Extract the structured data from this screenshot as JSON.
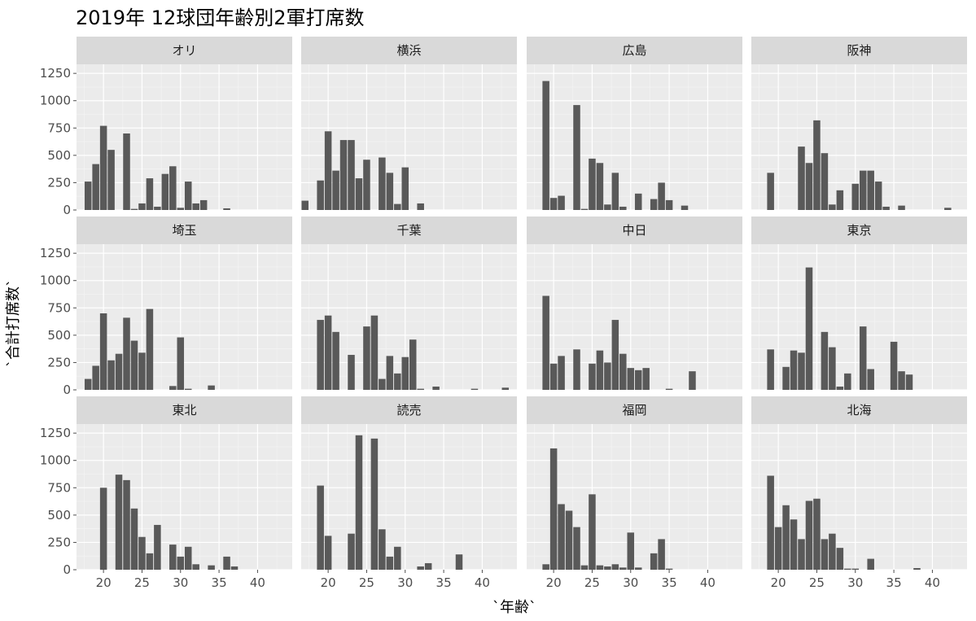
{
  "chart_data": {
    "type": "bar",
    "title": "2019年 12球団年齢別2軍打席数",
    "xlabel": "`年齢`",
    "ylabel": "`合計打席数`",
    "xlim": [
      16.5,
      44.5
    ],
    "ylim": [
      0,
      1250
    ],
    "x_ticks": [
      20,
      25,
      30,
      35,
      40
    ],
    "y_ticks": [
      0,
      250,
      500,
      750,
      1000,
      1250
    ],
    "grid": true,
    "panels": [
      {
        "name": "オリ",
        "bars": [
          [
            18,
            260
          ],
          [
            19,
            420
          ],
          [
            20,
            770
          ],
          [
            21,
            550
          ],
          [
            23,
            700
          ],
          [
            24,
            10
          ],
          [
            25,
            60
          ],
          [
            26,
            290
          ],
          [
            27,
            30
          ],
          [
            28,
            330
          ],
          [
            29,
            400
          ],
          [
            30,
            20
          ],
          [
            31,
            260
          ],
          [
            32,
            60
          ],
          [
            33,
            90
          ],
          [
            36,
            15
          ]
        ]
      },
      {
        "name": "横浜",
        "bars": [
          [
            17,
            85
          ],
          [
            19,
            270
          ],
          [
            20,
            720
          ],
          [
            21,
            360
          ],
          [
            22,
            640
          ],
          [
            23,
            640
          ],
          [
            24,
            290
          ],
          [
            25,
            460
          ],
          [
            27,
            480
          ],
          [
            28,
            340
          ],
          [
            29,
            55
          ],
          [
            30,
            390
          ],
          [
            32,
            60
          ]
        ]
      },
      {
        "name": "広島",
        "bars": [
          [
            19,
            1180
          ],
          [
            20,
            110
          ],
          [
            21,
            130
          ],
          [
            23,
            960
          ],
          [
            24,
            10
          ],
          [
            25,
            470
          ],
          [
            26,
            430
          ],
          [
            27,
            50
          ],
          [
            28,
            340
          ],
          [
            29,
            30
          ],
          [
            31,
            150
          ],
          [
            33,
            100
          ],
          [
            34,
            250
          ],
          [
            35,
            90
          ],
          [
            37,
            40
          ]
        ]
      },
      {
        "name": "阪神",
        "bars": [
          [
            19,
            340
          ],
          [
            23,
            580
          ],
          [
            24,
            430
          ],
          [
            25,
            820
          ],
          [
            26,
            520
          ],
          [
            27,
            50
          ],
          [
            28,
            180
          ],
          [
            30,
            240
          ],
          [
            31,
            360
          ],
          [
            32,
            360
          ],
          [
            33,
            260
          ],
          [
            34,
            30
          ],
          [
            36,
            40
          ],
          [
            42,
            20
          ]
        ]
      },
      {
        "name": "埼玉",
        "bars": [
          [
            18,
            100
          ],
          [
            19,
            220
          ],
          [
            20,
            700
          ],
          [
            21,
            270
          ],
          [
            22,
            330
          ],
          [
            23,
            660
          ],
          [
            24,
            450
          ],
          [
            25,
            340
          ],
          [
            26,
            740
          ],
          [
            29,
            35
          ],
          [
            30,
            480
          ],
          [
            31,
            10
          ],
          [
            34,
            40
          ]
        ]
      },
      {
        "name": "千葉",
        "bars": [
          [
            19,
            640
          ],
          [
            20,
            680
          ],
          [
            21,
            530
          ],
          [
            23,
            320
          ],
          [
            25,
            580
          ],
          [
            26,
            680
          ],
          [
            27,
            100
          ],
          [
            28,
            310
          ],
          [
            29,
            150
          ],
          [
            30,
            300
          ],
          [
            31,
            460
          ],
          [
            32,
            10
          ],
          [
            34,
            30
          ],
          [
            39,
            10
          ],
          [
            43,
            20
          ]
        ]
      },
      {
        "name": "中日",
        "bars": [
          [
            19,
            860
          ],
          [
            20,
            240
          ],
          [
            21,
            310
          ],
          [
            23,
            370
          ],
          [
            25,
            240
          ],
          [
            26,
            360
          ],
          [
            27,
            250
          ],
          [
            28,
            640
          ],
          [
            29,
            330
          ],
          [
            30,
            200
          ],
          [
            31,
            180
          ],
          [
            32,
            200
          ],
          [
            35,
            10
          ],
          [
            38,
            170
          ]
        ]
      },
      {
        "name": "東京",
        "bars": [
          [
            19,
            370
          ],
          [
            21,
            210
          ],
          [
            22,
            360
          ],
          [
            23,
            340
          ],
          [
            24,
            1120
          ],
          [
            26,
            530
          ],
          [
            27,
            390
          ],
          [
            28,
            30
          ],
          [
            29,
            150
          ],
          [
            31,
            580
          ],
          [
            32,
            190
          ],
          [
            35,
            440
          ],
          [
            36,
            170
          ],
          [
            37,
            140
          ]
        ]
      },
      {
        "name": "東北",
        "bars": [
          [
            20,
            750
          ],
          [
            22,
            870
          ],
          [
            23,
            820
          ],
          [
            24,
            560
          ],
          [
            25,
            300
          ],
          [
            26,
            150
          ],
          [
            27,
            410
          ],
          [
            29,
            230
          ],
          [
            30,
            120
          ],
          [
            31,
            210
          ],
          [
            32,
            50
          ],
          [
            34,
            40
          ],
          [
            36,
            120
          ],
          [
            37,
            30
          ]
        ]
      },
      {
        "name": "読売",
        "bars": [
          [
            19,
            770
          ],
          [
            20,
            310
          ],
          [
            23,
            330
          ],
          [
            24,
            1230
          ],
          [
            26,
            1200
          ],
          [
            27,
            370
          ],
          [
            28,
            120
          ],
          [
            29,
            210
          ],
          [
            32,
            30
          ],
          [
            33,
            60
          ],
          [
            37,
            140
          ]
        ]
      },
      {
        "name": "福岡",
        "bars": [
          [
            19,
            50
          ],
          [
            20,
            1110
          ],
          [
            21,
            600
          ],
          [
            22,
            540
          ],
          [
            23,
            390
          ],
          [
            24,
            40
          ],
          [
            25,
            690
          ],
          [
            26,
            40
          ],
          [
            27,
            30
          ],
          [
            28,
            50
          ],
          [
            29,
            20
          ],
          [
            30,
            340
          ],
          [
            31,
            20
          ],
          [
            33,
            150
          ],
          [
            34,
            280
          ],
          [
            35,
            10
          ]
        ]
      },
      {
        "name": "北海",
        "bars": [
          [
            19,
            860
          ],
          [
            20,
            390
          ],
          [
            21,
            590
          ],
          [
            22,
            460
          ],
          [
            23,
            280
          ],
          [
            24,
            630
          ],
          [
            25,
            650
          ],
          [
            26,
            280
          ],
          [
            27,
            330
          ],
          [
            28,
            200
          ],
          [
            29,
            10
          ],
          [
            30,
            10
          ],
          [
            32,
            100
          ],
          [
            38,
            15
          ]
        ]
      }
    ]
  },
  "colors": {
    "panel_bg": "#ebebeb",
    "grid_major": "#ffffff",
    "grid_minor": "#f5f5f5",
    "strip_bg": "#d9d9d9",
    "bar": "#595959",
    "tick": "#4d4d4d"
  }
}
